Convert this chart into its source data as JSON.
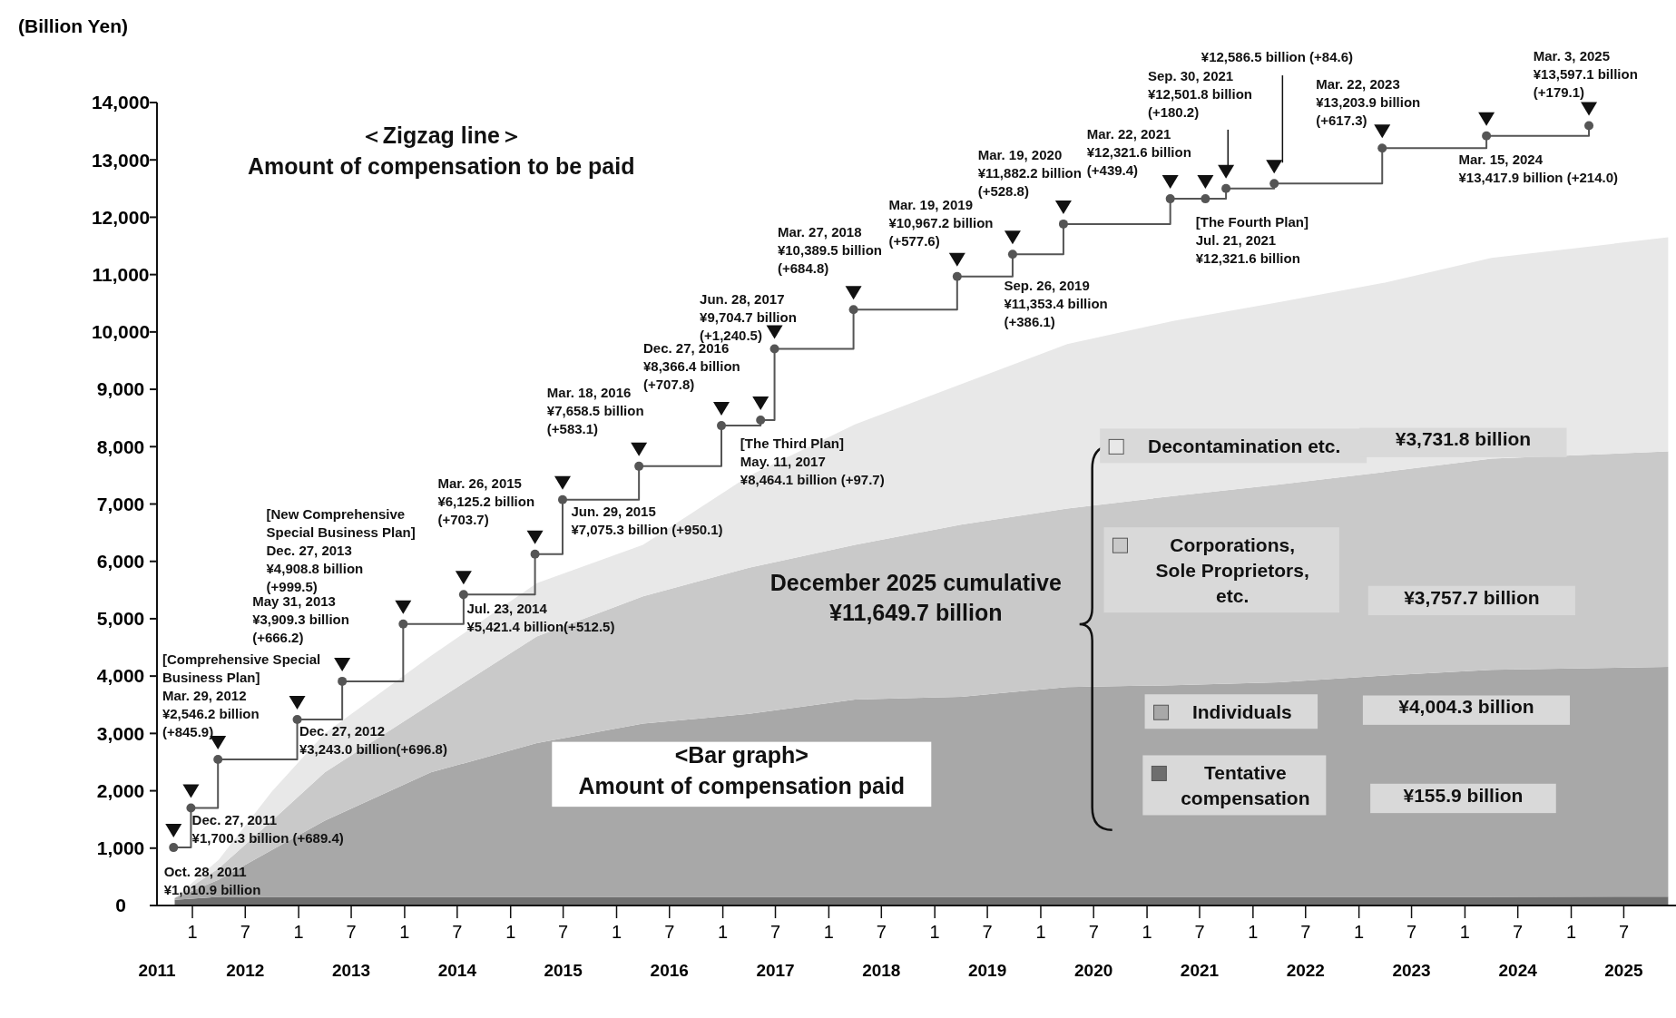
{
  "chart_data": {
    "type": "area",
    "ylabel": "(Billion Yen)",
    "stacked": true,
    "legend": "right",
    "xlim": [
      "2011-09-01",
      "2025-12-31"
    ],
    "ylim": [
      0,
      14000
    ],
    "yticks": [
      0,
      {
        "value": 1000,
        "label": "1,000"
      },
      {
        "value": 2000,
        "label": "2,000"
      },
      {
        "value": 3000,
        "label": "3,000"
      },
      {
        "value": 4000,
        "label": "4,000"
      },
      {
        "value": 5000,
        "label": "5,000"
      },
      {
        "value": 6000,
        "label": "6,000"
      },
      {
        "value": 7000,
        "label": "7,000"
      },
      {
        "value": 8000,
        "label": "8,000"
      },
      {
        "value": 9000,
        "label": "9,000"
      },
      {
        "value": 10000,
        "label": "10,000"
      },
      {
        "value": 11000,
        "label": "11,000"
      },
      {
        "value": 12000,
        "label": "12,000"
      },
      {
        "value": 13000,
        "label": "13,000"
      },
      {
        "value": 14000,
        "label": "14,000"
      }
    ],
    "xticks": [
      {
        "value": "2012-01-01",
        "label": "1"
      },
      {
        "value": "2012-07-01",
        "label": "7"
      },
      {
        "value": "2013-01-01",
        "label": "1"
      },
      {
        "value": "2013-07-01",
        "label": "7"
      },
      {
        "value": "2014-01-01",
        "label": "1"
      },
      {
        "value": "2014-07-01",
        "label": "7"
      },
      {
        "value": "2015-01-01",
        "label": "1"
      },
      {
        "value": "2015-07-01",
        "label": "7"
      },
      {
        "value": "2016-01-01",
        "label": "1"
      },
      {
        "value": "2016-07-01",
        "label": "7"
      },
      {
        "value": "2017-01-01",
        "label": "1"
      },
      {
        "value": "2017-07-01",
        "label": "7"
      },
      {
        "value": "2018-01-01",
        "label": "1"
      },
      {
        "value": "2018-07-01",
        "label": "7"
      },
      {
        "value": "2019-01-01",
        "label": "1"
      },
      {
        "value": "2019-07-01",
        "label": "7"
      },
      {
        "value": "2020-01-01",
        "label": "1"
      },
      {
        "value": "2020-07-01",
        "label": "7"
      },
      {
        "value": "2021-01-01",
        "label": "1"
      },
      {
        "value": "2021-07-01",
        "label": "7"
      },
      {
        "value": "2022-01-01",
        "label": "1"
      },
      {
        "value": "2022-07-01",
        "label": "7"
      },
      {
        "value": "2023-01-01",
        "label": "1"
      },
      {
        "value": "2023-07-01",
        "label": "7"
      },
      {
        "value": "2024-01-01",
        "label": "1"
      },
      {
        "value": "2024-07-01",
        "label": "7"
      },
      {
        "value": "2025-01-01",
        "label": "1"
      },
      {
        "value": "2025-07-01",
        "label": "7"
      }
    ],
    "x2lim": [
      "2011-09-01",
      "2025-12-31"
    ],
    "x2ticks": [
      {
        "value": "2011-09-01",
        "label": "2011"
      },
      {
        "value": "2012-07-01",
        "label": "2012"
      },
      {
        "value": "2013-07-01",
        "label": "2013"
      },
      {
        "value": "2014-07-01",
        "label": "2014"
      },
      {
        "value": "2015-07-01",
        "label": "2015"
      },
      {
        "value": "2016-07-01",
        "label": "2016"
      },
      {
        "value": "2017-07-01",
        "label": "2017"
      },
      {
        "value": "2018-07-01",
        "label": "2018"
      },
      {
        "value": "2019-07-01",
        "label": "2019"
      },
      {
        "value": "2020-07-01",
        "label": "2020"
      },
      {
        "value": "2021-07-01",
        "label": "2021"
      },
      {
        "value": "2022-07-01",
        "label": "2022"
      },
      {
        "value": "2023-07-01",
        "label": "2023"
      },
      {
        "value": "2024-07-01",
        "label": "2024"
      },
      {
        "value": "2025-07-01",
        "label": "2025"
      }
    ],
    "x": [
      "2011-11",
      "2012-04",
      "2012-10",
      "2013-04",
      "2014-04",
      "2015-04",
      "2016-04",
      "2017-04",
      "2018-04",
      "2019-04",
      "2020-04",
      "2021-04",
      "2022-04",
      "2023-04",
      "2024-04",
      "2025-12"
    ],
    "series": [
      {
        "name": "Tentative\ncompensation",
        "color": "#6e6e6e",
        "values": [
          100,
          150,
          150,
          150,
          150,
          150,
          150,
          150,
          150,
          150,
          150,
          150,
          150,
          150,
          150,
          155.9
        ]
      },
      {
        "name": "Individuals",
        "color": "#a8a8a8",
        "values": [
          30,
          300,
          820,
          1330,
          2170,
          2680,
          3020,
          3190,
          3440,
          3490,
          3660,
          3690,
          3740,
          3860,
          3960,
          4004.3
        ]
      },
      {
        "name": "Corporations,\nSole Proprietors,\netc.",
        "color": "#c9c9c9",
        "values": [
          0,
          200,
          510,
          840,
          1190,
          1860,
          2220,
          2550,
          2700,
          3000,
          3110,
          3300,
          3450,
          3550,
          3680,
          3757.7
        ]
      },
      {
        "name": "Decontamination etc.",
        "color": "#e8e8e8",
        "values": [
          0,
          150,
          510,
          680,
          840,
          930,
          900,
          1600,
          2100,
          2450,
          2870,
          3050,
          3180,
          3300,
          3500,
          3731.8
        ]
      },
      {
        "type": "step",
        "color": "#555555",
        "marker": "circle",
        "x": [
          "2011-10-28",
          "2011-12-27",
          "2012-03-29",
          "2012-12-27",
          "2013-05-31",
          "2013-12-27",
          "2014-07-23",
          "2015-03-26",
          "2015-06-29",
          "2016-03-18",
          "2016-12-27",
          "2017-05-11",
          "2017-06-28",
          "2018-03-27",
          "2019-03-19",
          "2019-09-26",
          "2020-03-19",
          "2021-03-22",
          "2021-07-21",
          "2021-09-30",
          "2022-03-15",
          "2023-03-22",
          "2024-03-15",
          "2025-03-03"
        ],
        "values": [
          1010.9,
          1700.3,
          2546.2,
          3243.0,
          3909.3,
          4908.8,
          5421.4,
          6125.2,
          7075.3,
          7658.5,
          8366.4,
          8464.1,
          9704.7,
          10389.5,
          10967.2,
          11353.4,
          11882.2,
          12321.6,
          12321.6,
          12501.8,
          12586.5,
          13203.9,
          13417.9,
          13597.1
        ]
      }
    ],
    "annotations": [
      "＜Zigzag line＞\nAmount of compensation to be paid",
      "<Bar graph>\nAmount of compensation paid",
      "December 2025 cumulative\n¥11,649.7 billion",
      "¥155.9 billion",
      "¥4,004.3 billion",
      "¥3,757.7 billion",
      "¥3,731.8 billion",
      "Sep. 30, 2021\n¥12,501.8 billion\n(+180.2)",
      "¥12,586.5 billion (+84.6)",
      {
        "text": "Oct. 28, 2011\n¥1,010.9 billion",
        "x": "2011-10-28",
        "y": 1010.9
      },
      {
        "text": "Dec. 27, 2011\n¥1,700.3 billion (+689.4)",
        "x": "2011-12-27",
        "y": 1700.3
      },
      {
        "text": "[Comprehensive Special\nBusiness Plan]\nMar. 29, 2012\n¥2,546.2 billion\n(+845.9)",
        "x": "2012-03-29",
        "y": 2546.2
      },
      {
        "text": "Dec. 27, 2012\n¥3,243.0 billion(+696.8)",
        "x": "2012-12-27",
        "y": 3243.0
      },
      {
        "text": "May 31, 2013\n¥3,909.3 billion\n(+666.2)",
        "x": "2013-05-31",
        "y": 3909.3
      },
      {
        "text": "[New Comprehensive\nSpecial Business Plan]\nDec. 27, 2013\n¥4,908.8 billion\n(+999.5)",
        "x": "2013-12-27",
        "y": 4908.8
      },
      {
        "text": "Jul. 23, 2014\n¥5,421.4 billion(+512.5)",
        "x": "2014-07-23",
        "y": 5421.4
      },
      {
        "text": "Mar. 26, 2015\n¥6,125.2 billion\n(+703.7)",
        "x": "2015-03-26",
        "y": 6125.2
      },
      {
        "text": "Jun. 29, 2015\n¥7,075.3 billion (+950.1)",
        "x": "2015-06-29",
        "y": 7075.3
      },
      {
        "text": "Mar. 18, 2016\n¥7,658.5 billion\n(+583.1)",
        "x": "2016-03-18",
        "y": 7658.5
      },
      {
        "text": "Dec. 27, 2016\n¥8,366.4 billion\n(+707.8)",
        "x": "2016-12-27",
        "y": 8366.4
      },
      {
        "text": "[The Third Plan]\nMay. 11, 2017\n¥8,464.1 billion (+97.7)",
        "x": "2017-05-11",
        "y": 8464.1
      },
      {
        "text": "Jun. 28, 2017\n¥9,704.7 billion\n(+1,240.5)",
        "x": "2017-06-28",
        "y": 9704.7
      },
      {
        "text": "Mar. 27, 2018\n¥10,389.5 billion\n(+684.8)",
        "x": "2018-03-27",
        "y": 10389.5
      },
      {
        "text": "Mar. 19, 2019\n¥10,967.2 billion\n(+577.6)",
        "x": "2019-03-19",
        "y": 10967.2
      },
      {
        "text": "Sep. 26, 2019\n¥11,353.4 billion\n(+386.1)",
        "x": "2019-09-26",
        "y": 11353.4
      },
      {
        "text": "Mar. 19, 2020\n¥11,882.2 billion\n(+528.8)",
        "x": "2020-03-19",
        "y": 11882.2
      },
      {
        "text": "Mar. 22, 2021\n¥12,321.6 billion\n(+439.4)",
        "x": "2021-03-22",
        "y": 12321.6
      },
      {
        "text": "[The Fourth Plan]\nJul. 21, 2021\n¥12,321.6 billion",
        "x": "2021-07-21",
        "y": 12321.6
      },
      {
        "text": "Mar. 22, 2023\n¥13,203.9 billion\n(+617.3)",
        "x": "2023-03-22",
        "y": 13203.9
      },
      {
        "text": "Mar. 15, 2024\n¥13,417.9 billion (+214.0)",
        "x": "2024-03-15",
        "y": 13417.9
      },
      {
        "text": "Mar. 3, 2025\n¥13,597.1 billion\n(+179.1)",
        "x": "2025-03-03",
        "y": 13597.1
      }
    ]
  }
}
